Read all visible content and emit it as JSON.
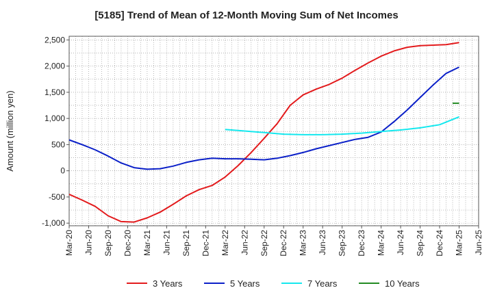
{
  "chart_data": {
    "type": "line",
    "title": "[5185]  Trend of Mean of 12-Month Moving Sum of Net Incomes",
    "ylabel": "Amount (million yen)",
    "xlabel": "",
    "ylim": [
      -1050,
      2570
    ],
    "xlim": [
      "2020-03",
      "2025-06"
    ],
    "grid": true,
    "legend_position": "bottom",
    "y_ticks": [
      -1000,
      -500,
      0,
      500,
      1000,
      1500,
      2000,
      2500
    ],
    "y_tick_labels": [
      "-1,000",
      "-500",
      "0",
      "500",
      "1,000",
      "1,500",
      "2,000",
      "2,500"
    ],
    "x_tick_labels": [
      "Mar-20",
      "Jun-20",
      "Sep-20",
      "Dec-20",
      "Mar-21",
      "Jun-21",
      "Sep-21",
      "Dec-21",
      "Mar-22",
      "Jun-22",
      "Sep-22",
      "Dec-22",
      "Mar-23",
      "Jun-23",
      "Sep-23",
      "Dec-23",
      "Mar-24",
      "Jun-24",
      "Sep-24",
      "Dec-24",
      "Mar-25",
      "Jun-25"
    ],
    "series": [
      {
        "name": "3 Years",
        "color": "#e31a1c",
        "points": [
          [
            "2020-03",
            -450
          ],
          [
            "2020-05",
            -560
          ],
          [
            "2020-07",
            -680
          ],
          [
            "2020-09",
            -860
          ],
          [
            "2020-11",
            -970
          ],
          [
            "2021-01",
            -980
          ],
          [
            "2021-03",
            -900
          ],
          [
            "2021-05",
            -790
          ],
          [
            "2021-07",
            -640
          ],
          [
            "2021-09",
            -480
          ],
          [
            "2021-11",
            -360
          ],
          [
            "2022-01",
            -280
          ],
          [
            "2022-03",
            -120
          ],
          [
            "2022-05",
            100
          ],
          [
            "2022-07",
            350
          ],
          [
            "2022-09",
            620
          ],
          [
            "2022-11",
            900
          ],
          [
            "2023-01",
            1250
          ],
          [
            "2023-03",
            1450
          ],
          [
            "2023-05",
            1560
          ],
          [
            "2023-07",
            1650
          ],
          [
            "2023-09",
            1770
          ],
          [
            "2023-11",
            1920
          ],
          [
            "2024-01",
            2060
          ],
          [
            "2024-03",
            2190
          ],
          [
            "2024-05",
            2290
          ],
          [
            "2024-07",
            2360
          ],
          [
            "2024-09",
            2390
          ],
          [
            "2024-11",
            2400
          ],
          [
            "2025-01",
            2410
          ],
          [
            "2025-03",
            2450
          ]
        ]
      },
      {
        "name": "5 Years",
        "color": "#0a1fc8",
        "points": [
          [
            "2020-03",
            590
          ],
          [
            "2020-05",
            500
          ],
          [
            "2020-07",
            400
          ],
          [
            "2020-09",
            280
          ],
          [
            "2020-11",
            150
          ],
          [
            "2021-01",
            60
          ],
          [
            "2021-03",
            30
          ],
          [
            "2021-05",
            40
          ],
          [
            "2021-07",
            90
          ],
          [
            "2021-09",
            160
          ],
          [
            "2021-11",
            210
          ],
          [
            "2022-01",
            240
          ],
          [
            "2022-03",
            230
          ],
          [
            "2022-05",
            230
          ],
          [
            "2022-07",
            220
          ],
          [
            "2022-09",
            210
          ],
          [
            "2022-11",
            240
          ],
          [
            "2023-01",
            290
          ],
          [
            "2023-03",
            350
          ],
          [
            "2023-05",
            420
          ],
          [
            "2023-07",
            480
          ],
          [
            "2023-09",
            540
          ],
          [
            "2023-11",
            600
          ],
          [
            "2024-01",
            640
          ],
          [
            "2024-03",
            740
          ],
          [
            "2024-05",
            940
          ],
          [
            "2024-07",
            1160
          ],
          [
            "2024-09",
            1400
          ],
          [
            "2024-11",
            1640
          ],
          [
            "2025-01",
            1860
          ],
          [
            "2025-03",
            1980
          ]
        ]
      },
      {
        "name": "7 Years",
        "color": "#14e8ee",
        "points": [
          [
            "2022-03",
            790
          ],
          [
            "2022-06",
            760
          ],
          [
            "2022-09",
            730
          ],
          [
            "2022-12",
            700
          ],
          [
            "2023-03",
            690
          ],
          [
            "2023-06",
            690
          ],
          [
            "2023-09",
            700
          ],
          [
            "2023-12",
            720
          ],
          [
            "2024-03",
            750
          ],
          [
            "2024-06",
            780
          ],
          [
            "2024-09",
            820
          ],
          [
            "2024-12",
            880
          ],
          [
            "2025-03",
            1030
          ]
        ]
      },
      {
        "name": "10 Years",
        "color": "#228b22",
        "points": [
          [
            "2025-02",
            1290
          ],
          [
            "2025-03",
            1290
          ]
        ]
      }
    ]
  }
}
